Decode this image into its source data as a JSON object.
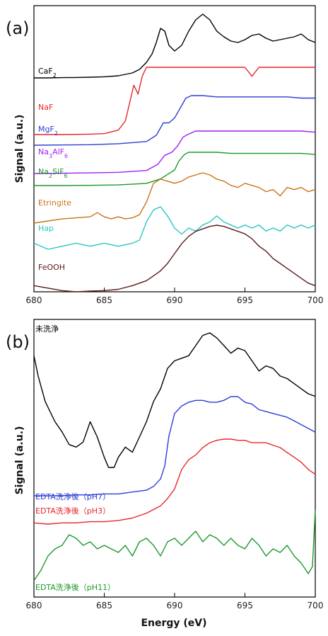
{
  "figure": {
    "xlabel": "Energy (eV)"
  },
  "chart_data": [
    {
      "type": "line",
      "panel_label": "(a)",
      "title": "",
      "xlabel": "",
      "ylabel": "Signal (a.u.)",
      "xlim": [
        680,
        700
      ],
      "xticks": [
        680,
        685,
        690,
        695,
        700
      ],
      "grid": false,
      "series": [
        {
          "name": "CaF2",
          "label_parts": [
            [
              "CaF",
              "n"
            ],
            [
              "2",
              "sub"
            ]
          ],
          "color": "#000000",
          "x": [
            680,
            681,
            682,
            683,
            684,
            685,
            686,
            687,
            687.5,
            688,
            688.4,
            688.7,
            689,
            689.3,
            689.6,
            690,
            690.5,
            691,
            691.5,
            692,
            692.5,
            693,
            693.5,
            694,
            694.5,
            695,
            695.5,
            696,
            696.5,
            697,
            697.5,
            698,
            698.5,
            699,
            699.5,
            700
          ],
          "y": [
            5,
            5,
            5.2,
            5.3,
            5.5,
            5.8,
            6.5,
            8.5,
            11,
            16,
            22,
            30,
            40,
            38,
            28,
            24,
            28,
            38,
            46,
            50,
            46,
            38,
            34,
            31,
            30,
            32,
            35,
            36,
            33,
            31,
            32,
            33,
            34,
            36,
            32,
            30
          ]
        },
        {
          "name": "NaF",
          "label_parts": [
            [
              "NaF",
              "n"
            ]
          ],
          "color": "#e8262a",
          "x": [
            680,
            682,
            684,
            685,
            686,
            686.5,
            686.8,
            687.1,
            687.4,
            687.7,
            688,
            688.3,
            688.6,
            689,
            690,
            691,
            692,
            693,
            694,
            695,
            695.5,
            696,
            697,
            698,
            699,
            700
          ],
          "y": [
            5,
            5,
            5.1,
            5.2,
            6,
            8,
            12,
            16,
            14,
            18,
            20,
            20,
            20,
            20,
            20,
            20,
            20,
            20,
            20,
            20,
            18,
            20,
            20,
            20,
            20,
            20
          ]
        },
        {
          "name": "MgF2",
          "label_parts": [
            [
              "MgF",
              "n"
            ],
            [
              "2",
              "sub"
            ]
          ],
          "color": "#2a3ed6",
          "x": [
            680,
            682,
            684,
            686,
            688,
            688.7,
            689.2,
            689.6,
            690,
            690.4,
            690.8,
            691.2,
            692,
            693,
            694,
            695,
            696,
            697,
            698,
            699,
            700
          ],
          "y": [
            5,
            5.1,
            5.2,
            5.6,
            6.5,
            9,
            14,
            14,
            16,
            20,
            24,
            25,
            25,
            24.5,
            24.5,
            24.5,
            24.5,
            24.5,
            24.5,
            24,
            24
          ]
        },
        {
          "name": "Na3AlF6",
          "label_parts": [
            [
              "Na",
              "n"
            ],
            [
              "3",
              "sub"
            ],
            [
              "AlF",
              "n"
            ],
            [
              "6",
              "sub"
            ]
          ],
          "color": "#a020f0",
          "x": [
            680,
            682,
            684,
            686,
            688,
            688.8,
            689.3,
            689.8,
            690.2,
            690.6,
            691,
            691.5,
            692,
            693,
            694,
            695,
            696,
            697,
            698,
            699,
            700
          ],
          "y": [
            5,
            5.1,
            5.2,
            5.4,
            6,
            8,
            11,
            12,
            14,
            17,
            18,
            19,
            19,
            19,
            19,
            19,
            19,
            19,
            19,
            19,
            18.6
          ]
        },
        {
          "name": "Na2SiF6",
          "label_parts": [
            [
              "Na",
              "n"
            ],
            [
              "2",
              "sub"
            ],
            [
              "SiF",
              "n"
            ],
            [
              "6",
              "sub"
            ]
          ],
          "color": "#1a9a2a",
          "x": [
            680,
            682,
            684,
            686,
            688,
            689,
            689.5,
            690,
            690.3,
            690.7,
            691,
            692,
            693,
            694,
            695,
            696,
            697,
            698,
            699,
            700
          ],
          "y": [
            5,
            5,
            5.1,
            5.3,
            6,
            8,
            10,
            12,
            16,
            19,
            20,
            20,
            20,
            19.5,
            19.5,
            19.5,
            19.5,
            19.5,
            19.5,
            19
          ]
        },
        {
          "name": "Etringite",
          "label_parts": [
            [
              "Etringite",
              "n"
            ]
          ],
          "color": "#c8731a",
          "x": [
            680,
            681,
            682,
            683,
            684,
            684.5,
            685,
            685.5,
            686,
            686.5,
            687,
            687.5,
            688,
            688.5,
            689,
            689.5,
            690,
            690.5,
            691,
            691.5,
            692,
            692.5,
            693,
            693.5,
            694,
            694.5,
            695,
            695.5,
            696,
            696.5,
            697,
            697.5,
            698,
            698.5,
            699,
            699.5,
            700
          ],
          "y": [
            5,
            6,
            7,
            7.5,
            8,
            10,
            8,
            7,
            8,
            7,
            7.5,
            9,
            15,
            24,
            26,
            25,
            24,
            25,
            27,
            28,
            29,
            28,
            26,
            25,
            23,
            22,
            24,
            23,
            22,
            20,
            21,
            18,
            22,
            21,
            22,
            20,
            21
          ]
        },
        {
          "name": "Hap",
          "label_parts": [
            [
              "Hap",
              "n"
            ]
          ],
          "color": "#2ec4c4",
          "x": [
            680,
            681,
            682,
            683,
            684,
            685,
            686,
            687,
            687.5,
            688,
            688.5,
            689,
            689.5,
            690,
            690.5,
            691,
            691.5,
            692,
            692.5,
            693,
            693.5,
            694,
            694.5,
            695,
            695.5,
            696,
            696.5,
            697,
            697.5,
            698,
            698.5,
            699,
            699.5,
            700
          ],
          "y": [
            5,
            3,
            4,
            5,
            4,
            5,
            4,
            5,
            6,
            12,
            16,
            17,
            14,
            10,
            8,
            10,
            9,
            11,
            12,
            14,
            12,
            11,
            10,
            11,
            10,
            11,
            9,
            10,
            9,
            11,
            10,
            11,
            10,
            11
          ]
        },
        {
          "name": "FeOOH",
          "label_parts": [
            [
              "FeOOH",
              "n"
            ]
          ],
          "color": "#5a1a1a",
          "x": [
            680,
            681,
            682,
            683,
            684,
            685,
            686,
            687,
            688,
            688.5,
            689,
            689.5,
            690,
            690.5,
            691,
            691.5,
            692,
            692.5,
            693,
            693.5,
            694,
            694.5,
            695,
            695.5,
            696,
            696.5,
            697,
            697.5,
            698,
            698.5,
            699,
            699.5,
            700
          ],
          "y": [
            5,
            4,
            3,
            2.5,
            2.8,
            3,
            3.5,
            5,
            7,
            9,
            11,
            14,
            18,
            22,
            25,
            27,
            28,
            29,
            29.5,
            29,
            28,
            27,
            26,
            24,
            21,
            19,
            16,
            14,
            12,
            10,
            8,
            6,
            5
          ]
        }
      ]
    },
    {
      "type": "line",
      "panel_label": "(b)",
      "title": "",
      "xlabel": "Energy (eV)",
      "ylabel": "Signal (a.u.)",
      "xlim": [
        680,
        700
      ],
      "xticks": [
        680,
        685,
        690,
        695,
        700
      ],
      "grid": false,
      "series": [
        {
          "name": "未洗浄",
          "label_parts": [
            [
              "未洗浄",
              "n"
            ]
          ],
          "color": "#000000",
          "x": [
            680,
            680.3,
            680.8,
            681.5,
            682,
            682.5,
            683,
            683.5,
            684,
            684.5,
            685,
            685.3,
            685.7,
            686,
            686.5,
            687,
            687.5,
            688,
            688.5,
            689,
            689.5,
            690,
            690.5,
            691,
            691.5,
            692,
            692.5,
            693,
            693.5,
            694,
            694.5,
            695,
            695.5,
            696,
            696.5,
            697,
            697.5,
            698,
            698.5,
            699,
            699.5,
            700
          ],
          "y": [
            88,
            80,
            70,
            62,
            58,
            53,
            52,
            54,
            62,
            56,
            48,
            44,
            44,
            48,
            52,
            50,
            56,
            62,
            70,
            75,
            83,
            86,
            87,
            88,
            92,
            96,
            97,
            95,
            92,
            89,
            91,
            90,
            86,
            82,
            84,
            83,
            80,
            79,
            77,
            75,
            73,
            72
          ]
        },
        {
          "name": "EDTA洗浄後（pH7）",
          "label_parts": [
            [
              "EDTA洗浄後（pH7）",
              "n"
            ]
          ],
          "color": "#2a3ed6",
          "x": [
            680,
            681,
            682,
            683,
            684,
            685,
            686,
            687,
            688,
            688.5,
            689,
            689.3,
            689.6,
            690,
            690.5,
            691,
            691.5,
            692,
            692.5,
            693,
            693.5,
            694,
            694.5,
            695,
            695.5,
            696,
            696.5,
            697,
            697.5,
            698,
            698.5,
            699,
            699.5,
            700
          ],
          "y": [
            26,
            26,
            26,
            26.5,
            26.5,
            27,
            27,
            28,
            29,
            31,
            35,
            42,
            58,
            70,
            74,
            76,
            77,
            77,
            76,
            76,
            77,
            79,
            79,
            76,
            75,
            72,
            71,
            70,
            69,
            68,
            66,
            64,
            62,
            60
          ]
        },
        {
          "name": "EDTA洗浄後（pH3）",
          "label_parts": [
            [
              "EDTA洗浄後（pH3）",
              "n"
            ]
          ],
          "color": "#e8262a",
          "x": [
            680,
            681,
            682,
            683,
            684,
            685,
            686,
            687,
            688,
            689,
            689.5,
            690,
            690.5,
            691,
            691.5,
            692,
            692.5,
            693,
            693.5,
            694,
            694.5,
            695,
            695.5,
            696,
            696.5,
            697,
            697.5,
            698,
            698.5,
            699,
            699.5,
            700
          ],
          "y": [
            21,
            20.5,
            21,
            21,
            21.5,
            21.5,
            22,
            23,
            25,
            28,
            31,
            35,
            43,
            47,
            49,
            52,
            54,
            55,
            55.5,
            55.5,
            55,
            55,
            54,
            54,
            54,
            53,
            52,
            50,
            48,
            46,
            43,
            41
          ]
        },
        {
          "name": "EDTA洗浄後（pH11）",
          "label_parts": [
            [
              "EDTA洗浄後（pH11）",
              "n"
            ]
          ],
          "color": "#1a9a2a",
          "x": [
            680,
            680.5,
            681,
            681.5,
            682,
            682.5,
            683,
            683.5,
            684,
            684.5,
            685,
            685.5,
            686,
            686.5,
            687,
            687.5,
            688,
            688.5,
            689,
            689.5,
            690,
            690.5,
            691,
            691.5,
            692,
            692.5,
            693,
            693.5,
            694,
            694.5,
            695,
            695.5,
            696,
            696.5,
            697,
            697.5,
            698,
            698.5,
            699,
            699.5,
            699.8,
            700
          ],
          "y": [
            2,
            5,
            9,
            11,
            12,
            15,
            14,
            12,
            13,
            11,
            12,
            11,
            10,
            12,
            9,
            13,
            14,
            12,
            9,
            13,
            14,
            12,
            14,
            16,
            13,
            15,
            14,
            12,
            14,
            12,
            11,
            14,
            12,
            9,
            11,
            10,
            12,
            9,
            7,
            4,
            6,
            22
          ]
        }
      ]
    }
  ]
}
